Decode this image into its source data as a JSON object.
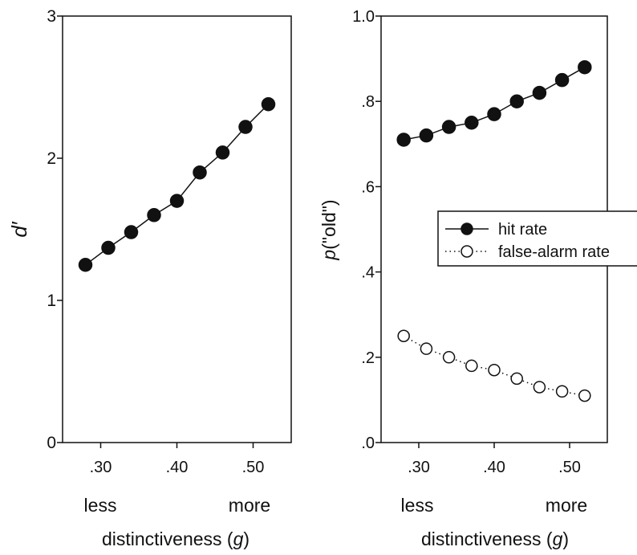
{
  "colors": {
    "ink": "#111111",
    "background": "#ffffff"
  },
  "chart_data": [
    {
      "type": "line",
      "ylabel": "d′",
      "xlabel_prefix": "distinctiveness (",
      "xlabel_var": "g",
      "xlabel_suffix": ")",
      "xlim": [
        0.25,
        0.55
      ],
      "ylim": [
        0,
        3
      ],
      "x_ticks": [
        {
          "v": 0.3,
          "label": ".30"
        },
        {
          "v": 0.4,
          "label": ".40"
        },
        {
          "v": 0.5,
          "label": ".50"
        }
      ],
      "y_ticks": [
        {
          "v": 0,
          "label": "0"
        },
        {
          "v": 1,
          "label": "1"
        },
        {
          "v": 2,
          "label": "2"
        },
        {
          "v": 3,
          "label": "3"
        }
      ],
      "x_end_labels": {
        "left": "less",
        "right": "more"
      },
      "grid": false,
      "series": [
        {
          "marker": "filled-circle",
          "line": "solid",
          "x": [
            0.28,
            0.31,
            0.34,
            0.37,
            0.4,
            0.43,
            0.46,
            0.49,
            0.52
          ],
          "y": [
            1.25,
            1.37,
            1.48,
            1.6,
            1.7,
            1.9,
            2.04,
            2.22,
            2.38
          ]
        }
      ]
    },
    {
      "type": "line",
      "ylabel_var": "p",
      "ylabel_rest": "(\"old\")",
      "xlabel_prefix": "distinctiveness (",
      "xlabel_var": "g",
      "xlabel_suffix": ")",
      "xlim": [
        0.25,
        0.55
      ],
      "ylim": [
        0,
        1
      ],
      "x_ticks": [
        {
          "v": 0.3,
          "label": ".30"
        },
        {
          "v": 0.4,
          "label": ".40"
        },
        {
          "v": 0.5,
          "label": ".50"
        }
      ],
      "y_ticks": [
        {
          "v": 0.0,
          "label": ".0"
        },
        {
          "v": 0.2,
          "label": ".2"
        },
        {
          "v": 0.4,
          "label": ".4"
        },
        {
          "v": 0.6,
          "label": ".6"
        },
        {
          "v": 0.8,
          "label": ".8"
        },
        {
          "v": 1.0,
          "label": "1.0"
        }
      ],
      "x_end_labels": {
        "left": "less",
        "right": "more"
      },
      "grid": false,
      "legend_position": "right",
      "series": [
        {
          "name": "hit rate",
          "marker": "filled-circle",
          "line": "solid",
          "x": [
            0.28,
            0.31,
            0.34,
            0.37,
            0.4,
            0.43,
            0.46,
            0.49,
            0.52
          ],
          "y": [
            0.71,
            0.72,
            0.74,
            0.75,
            0.77,
            0.8,
            0.82,
            0.85,
            0.88
          ]
        },
        {
          "name": "false-alarm rate",
          "marker": "open-circle",
          "line": "dotted",
          "x": [
            0.28,
            0.31,
            0.34,
            0.37,
            0.4,
            0.43,
            0.46,
            0.49,
            0.52
          ],
          "y": [
            0.25,
            0.22,
            0.2,
            0.18,
            0.17,
            0.15,
            0.13,
            0.12,
            0.11
          ]
        }
      ]
    }
  ]
}
